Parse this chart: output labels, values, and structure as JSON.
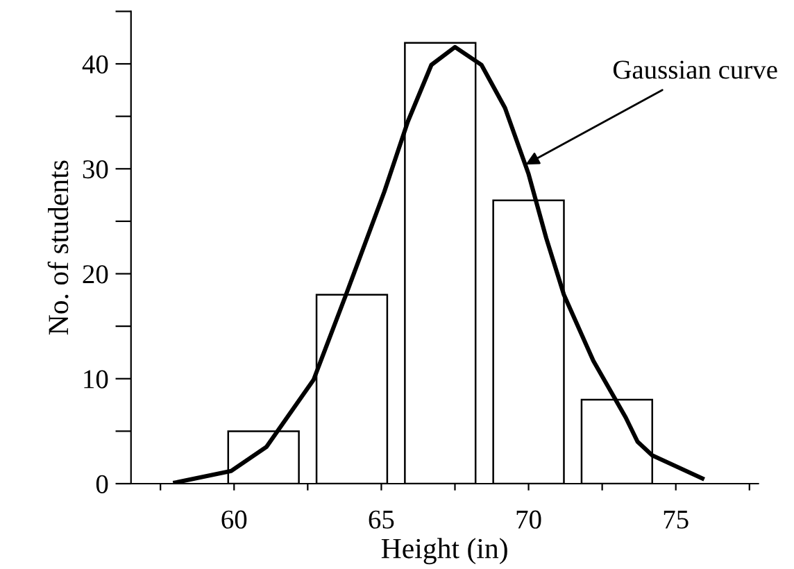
{
  "chart_data": {
    "type": "bar",
    "xlabel": "Height (in)",
    "ylabel": "No. of students",
    "x": [
      61,
      64,
      67,
      70,
      73
    ],
    "values": [
      5,
      18,
      42,
      27,
      8
    ],
    "color": "#ffffff",
    "series": [
      {
        "type": "line",
        "color": "#000000",
        "x": [
          58.0,
          59.9,
          61.1,
          62.7,
          63.8,
          65.1,
          65.9,
          66.7,
          67.5,
          68.4,
          69.2,
          70.0,
          70.6,
          71.2,
          72.2,
          73.3,
          73.7,
          74.2,
          75.9
        ],
        "values": [
          0.1,
          1.2,
          3.5,
          9.9,
          18,
          27.8,
          34.5,
          39.9,
          41.6,
          39.9,
          35.8,
          29.5,
          23.4,
          18,
          11.7,
          6.3,
          4.0,
          2.7,
          0.5
        ]
      }
    ],
    "annotations": [
      {
        "text": "Gaussian curve",
        "x": 69.9,
        "y": 30.4
      }
    ],
    "xlim": [
      56.5,
      77.8
    ],
    "ylim": [
      0,
      45
    ],
    "xticks": [
      {
        "value": 57.5,
        "label": null
      },
      {
        "value": 60,
        "label": "60"
      },
      {
        "value": 62.5,
        "label": null
      },
      {
        "value": 65,
        "label": "65"
      },
      {
        "value": 67.5,
        "label": null
      },
      {
        "value": 70,
        "label": "70"
      },
      {
        "value": 72.5,
        "label": null
      },
      {
        "value": 75,
        "label": "75"
      },
      {
        "value": 77.5,
        "label": null
      }
    ],
    "yticks": [
      0,
      {
        "value": 5,
        "label": null
      },
      10,
      {
        "value": 15,
        "label": null
      },
      20,
      {
        "value": 25,
        "label": null
      },
      30,
      {
        "value": 35,
        "label": null
      },
      40,
      {
        "value": 45,
        "label": null
      }
    ],
    "grid": false,
    "marker": "none",
    "line_style": "solid"
  }
}
